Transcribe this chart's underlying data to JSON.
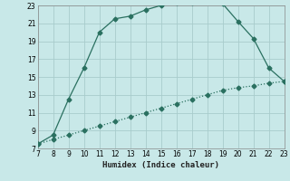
{
  "title": "",
  "xlabel": "Humidex (Indice chaleur)",
  "background_color": "#c8e8e8",
  "grid_color": "#a8cccc",
  "line_color": "#2a7060",
  "curve1_x": [
    7,
    8,
    9,
    10,
    11,
    12,
    13,
    14,
    15,
    16,
    17,
    18,
    19,
    20,
    21,
    22,
    23
  ],
  "curve1_y": [
    7.5,
    8.5,
    12.5,
    16.0,
    20.0,
    21.5,
    21.8,
    22.5,
    23.0,
    23.3,
    23.3,
    23.5,
    23.2,
    21.2,
    19.3,
    16.0,
    14.5
  ],
  "curve2_x": [
    7,
    8,
    9,
    10,
    11,
    12,
    13,
    14,
    15,
    16,
    17,
    18,
    19,
    20,
    21,
    22,
    23
  ],
  "curve2_y": [
    7.5,
    8.0,
    8.5,
    9.0,
    9.5,
    10.0,
    10.5,
    11.0,
    11.5,
    12.0,
    12.5,
    13.0,
    13.5,
    13.8,
    14.0,
    14.3,
    14.5
  ],
  "xlim": [
    7,
    23
  ],
  "ylim": [
    7,
    23
  ],
  "xticks": [
    7,
    8,
    9,
    10,
    11,
    12,
    13,
    14,
    15,
    16,
    17,
    18,
    19,
    20,
    21,
    22,
    23
  ],
  "yticks": [
    7,
    9,
    11,
    13,
    15,
    17,
    19,
    21,
    23
  ],
  "marker": "D",
  "markersize": 2.5,
  "linewidth": 0.9,
  "tick_fontsize": 5.5,
  "xlabel_fontsize": 6.5
}
